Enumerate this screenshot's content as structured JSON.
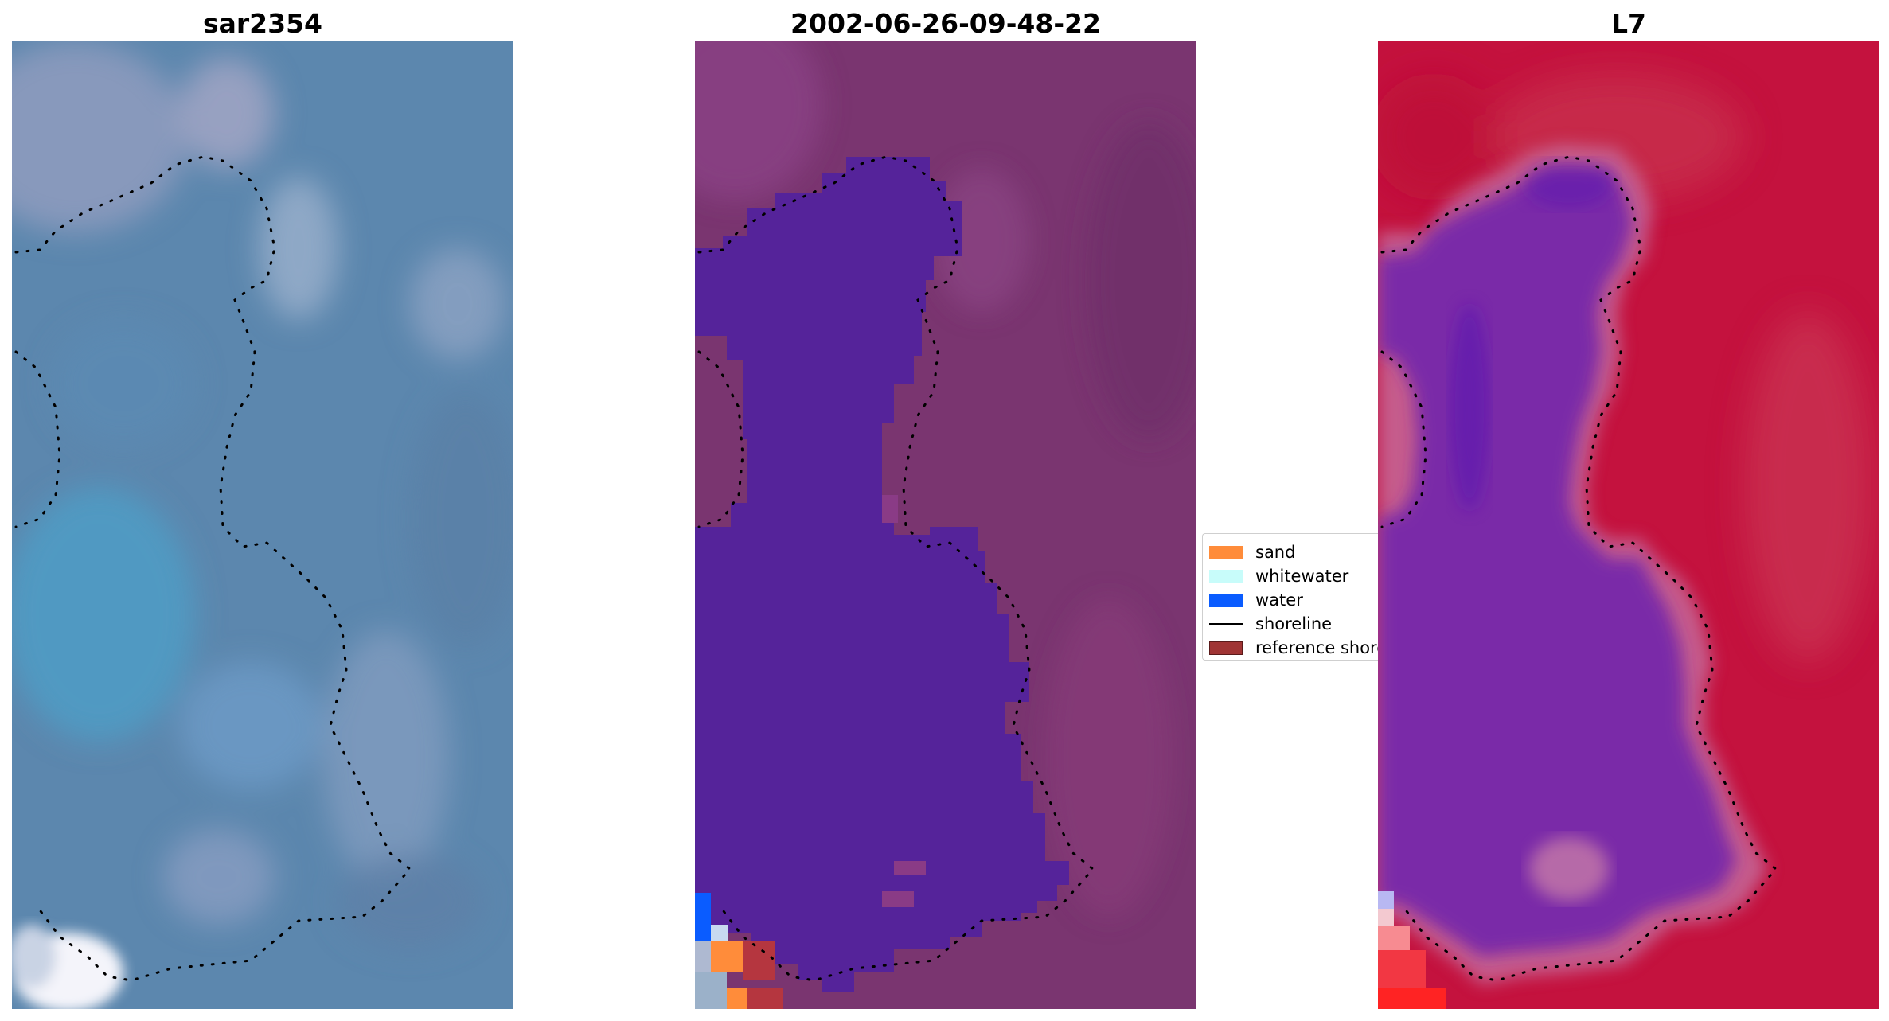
{
  "panels": {
    "sar": {
      "title": "sar2354"
    },
    "classified": {
      "title": "2002-06-26-09-48-22"
    },
    "ndwi": {
      "title": "L7"
    }
  },
  "legend": {
    "items": [
      {
        "label": "sand",
        "color": "#ff8c3a",
        "kind": "patch"
      },
      {
        "label": "whitewater",
        "color": "#c8fcfa",
        "kind": "patch"
      },
      {
        "label": "water",
        "color": "#0a5cff",
        "kind": "patch"
      },
      {
        "label": "shoreline",
        "color": "#000000",
        "kind": "line"
      },
      {
        "label": "reference shoreline buffer",
        "color": "#a03434",
        "kind": "patch"
      }
    ]
  },
  "colors": {
    "sar_base": "#5b86ad",
    "classified_land": "#7a3570",
    "classified_water": "#55239a",
    "ndwi_land": "#c4123e",
    "ndwi_water": "#7a2aa8",
    "shoreline_dots": "#000000"
  }
}
